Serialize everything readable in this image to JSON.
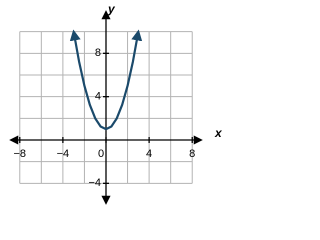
{
  "chart_data": {
    "type": "line",
    "x_label": "x",
    "y_label": "y",
    "x": [
      -3,
      -2.5,
      -2,
      -1.5,
      -1,
      -0.5,
      0,
      0.5,
      1,
      1.5,
      2,
      2.5,
      3
    ],
    "series": [
      {
        "color": "#1b4a6b",
        "values": [
          10,
          7.25,
          5,
          3.25,
          2,
          1.25,
          1,
          1.25,
          2,
          3.25,
          5,
          7.25,
          10
        ]
      }
    ],
    "xlim": [
      -9,
      9
    ],
    "ylim": [
      -6,
      12
    ],
    "xticks": [
      {
        "value": -8,
        "label": "−8"
      },
      {
        "value": -4,
        "label": "−4"
      },
      0,
      4,
      8
    ],
    "yticks": [
      {
        "value": -4,
        "label": "−4"
      },
      4,
      8
    ],
    "xgrid": [
      -8,
      -6,
      -4,
      -2,
      0,
      2,
      4,
      6,
      8
    ],
    "ygrid": [
      -4,
      -2,
      0,
      2,
      4,
      6,
      8,
      10
    ],
    "grid": true
  }
}
